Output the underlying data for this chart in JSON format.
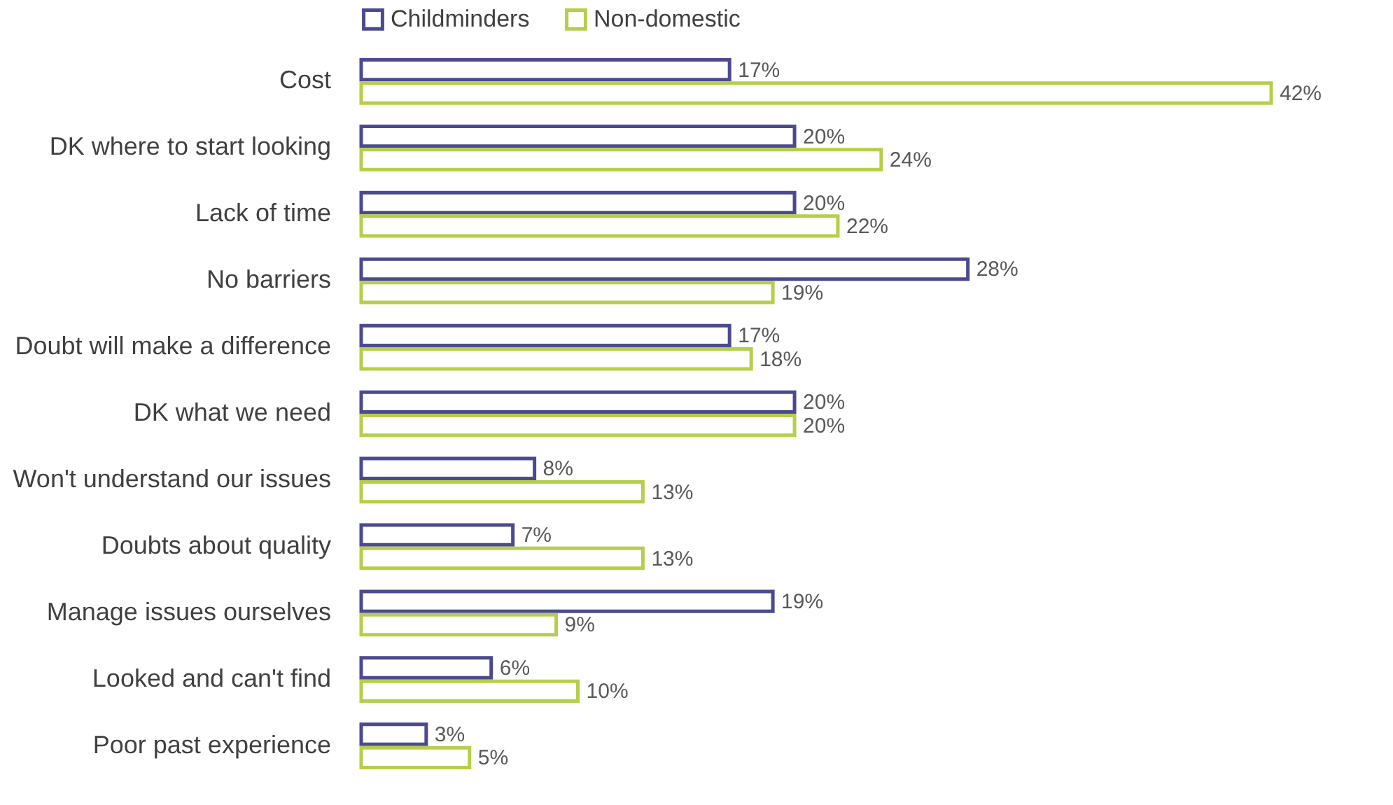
{
  "chart_data": {
    "type": "bar",
    "orientation": "horizontal",
    "legend": "top",
    "categories": [
      "Cost",
      "DK where to start looking",
      "Lack of time",
      "No barriers",
      "Doubt will make a difference",
      "DK what we need",
      "Won't understand our issues",
      "Doubts about quality",
      "Manage issues ourselves",
      "Looked and can't find",
      "Poor past experience"
    ],
    "series": [
      {
        "name": "Childminders",
        "color": "#4b4a8f",
        "values": [
          17,
          20,
          20,
          28,
          17,
          20,
          8,
          7,
          19,
          6,
          3
        ],
        "value_labels": [
          "17%",
          "20%",
          "20%",
          "28%",
          "17%",
          "20%",
          "8%",
          "7%",
          "19%",
          "6%",
          "3%"
        ]
      },
      {
        "name": "Non-domestic",
        "color": "#b5cf4a",
        "values": [
          42,
          24,
          22,
          19,
          18,
          20,
          13,
          13,
          9,
          10,
          5
        ],
        "value_labels": [
          "42%",
          "24%",
          "22%",
          "19%",
          "18%",
          "20%",
          "13%",
          "13%",
          "9%",
          "10%",
          "5%"
        ]
      }
    ]
  }
}
